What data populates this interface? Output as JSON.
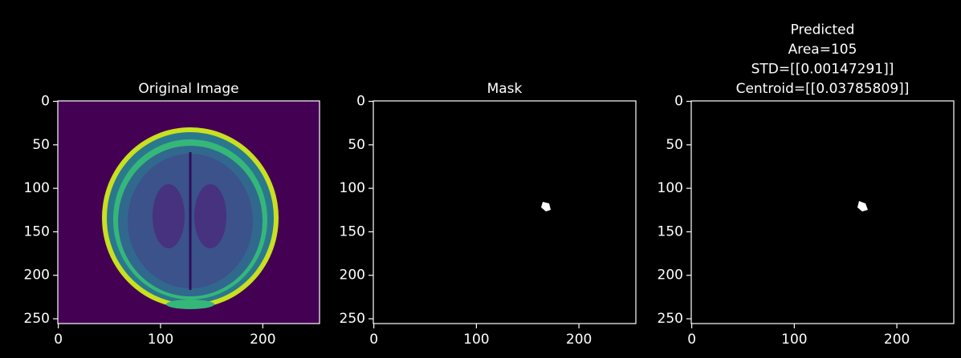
{
  "chart_data": [
    {
      "type": "image",
      "title": [
        "Original Image"
      ],
      "background": "#440154",
      "xlim": [
        -0.5,
        255.5
      ],
      "ylim": [
        255.5,
        -0.5
      ],
      "xticks": [
        0,
        100,
        200
      ],
      "yticks": [
        0,
        50,
        100,
        150,
        200,
        250
      ]
    },
    {
      "type": "image",
      "title": [
        "Mask"
      ],
      "background": "#000000",
      "xlim": [
        -0.5,
        255.5
      ],
      "ylim": [
        255.5,
        -0.5
      ],
      "xticks": [
        0,
        100,
        200
      ],
      "yticks": [
        0,
        50,
        100,
        150,
        200,
        250
      ]
    },
    {
      "type": "image",
      "title": [
        "Predicted",
        "Area=105",
        "STD=[[0.00147291]]",
        "Centroid=[[0.03785809]]"
      ],
      "background": "#000000",
      "xlim": [
        -0.5,
        255.5
      ],
      "ylim": [
        255.5,
        -0.5
      ],
      "xticks": [
        0,
        100,
        200
      ],
      "yticks": [
        0,
        50,
        100,
        150,
        200,
        250
      ]
    }
  ]
}
